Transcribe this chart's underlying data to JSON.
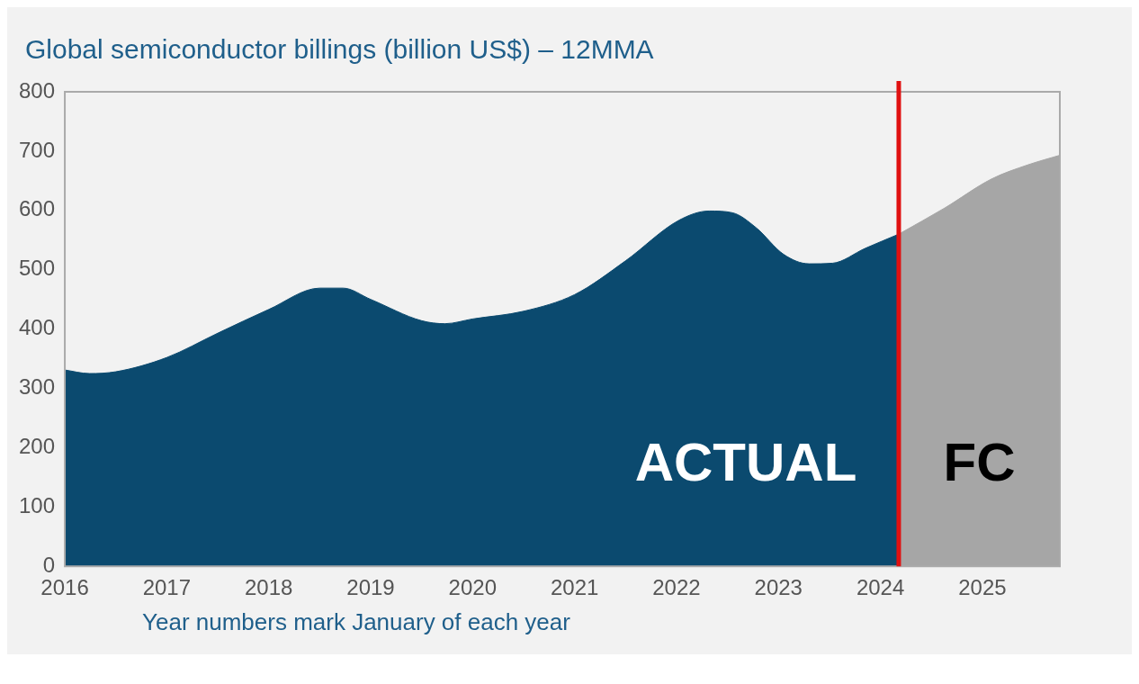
{
  "chart_data": {
    "type": "area",
    "title": "Global semiconductor billings (billion US$) – 12MMA",
    "annotations": [
      "Year numbers mark January of each year"
    ],
    "xlim": [
      2016,
      2025.76
    ],
    "xticks": [
      2016,
      2017,
      2018,
      2019,
      2020,
      2021,
      2022,
      2023,
      2024,
      2025
    ],
    "ylim": [
      0,
      800
    ],
    "yticks": [
      0,
      100,
      200,
      300,
      400,
      500,
      600,
      700,
      800
    ],
    "grid": false,
    "legend": false,
    "marker": "none",
    "ref_lines": [
      {
        "axis": "x",
        "value": 2024.18,
        "color": "#e01010"
      }
    ],
    "series": [
      {
        "name": "ACTUAL",
        "color": "#0b4a6f",
        "x": [
          2016,
          2016.24,
          2016.5,
          2017,
          2017.5,
          2018,
          2018.5,
          2018.73,
          2019,
          2019.5,
          2019.73,
          2020,
          2020.5,
          2021,
          2021.5,
          2022.02,
          2022.32,
          2022.55,
          2022.78,
          2023.05,
          2023.3,
          2023.53,
          2023.85,
          2024.18
        ],
        "values": [
          331,
          325,
          328,
          352,
          393,
          433,
          469,
          469,
          450,
          414,
          409,
          417,
          430,
          458,
          515,
          583,
          599,
          596,
          571,
          526,
          510,
          511,
          536,
          560
        ]
      },
      {
        "name": "FC",
        "color": "#a6a6a6",
        "x": [
          2024.18,
          2024.63,
          2025.09,
          2025.45,
          2025.76
        ],
        "values": [
          560,
          604,
          653,
          677,
          693
        ]
      }
    ]
  }
}
